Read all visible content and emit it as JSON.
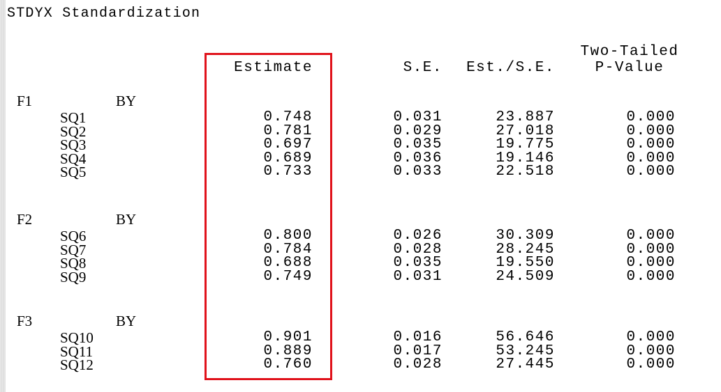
{
  "title": "STDYX Standardization",
  "headers": {
    "estimate": "Estimate",
    "se": "S.E.",
    "est_se": "Est./S.E.",
    "p_line1": "Two-Tailed",
    "p_line2": "P-Value"
  },
  "groups": [
    {
      "factor": "F1",
      "relation": "BY",
      "rows": [
        {
          "label": "SQ1",
          "estimate": "0.748",
          "se": "0.031",
          "est_se": "23.887",
          "p": "0.000"
        },
        {
          "label": "SQ2",
          "estimate": "0.781",
          "se": "0.029",
          "est_se": "27.018",
          "p": "0.000"
        },
        {
          "label": "SQ3",
          "estimate": "0.697",
          "se": "0.035",
          "est_se": "19.775",
          "p": "0.000"
        },
        {
          "label": "SQ4",
          "estimate": "0.689",
          "se": "0.036",
          "est_se": "19.146",
          "p": "0.000"
        },
        {
          "label": "SQ5",
          "estimate": "0.733",
          "se": "0.033",
          "est_se": "22.518",
          "p": "0.000"
        }
      ]
    },
    {
      "factor": "F2",
      "relation": "BY",
      "rows": [
        {
          "label": "SQ6",
          "estimate": "0.800",
          "se": "0.026",
          "est_se": "30.309",
          "p": "0.000"
        },
        {
          "label": "SQ7",
          "estimate": "0.784",
          "se": "0.028",
          "est_se": "28.245",
          "p": "0.000"
        },
        {
          "label": "SQ8",
          "estimate": "0.688",
          "se": "0.035",
          "est_se": "19.550",
          "p": "0.000"
        },
        {
          "label": "SQ9",
          "estimate": "0.749",
          "se": "0.031",
          "est_se": "24.509",
          "p": "0.000"
        }
      ]
    },
    {
      "factor": "F3",
      "relation": "BY",
      "rows": [
        {
          "label": "SQ10",
          "estimate": "0.901",
          "se": "0.016",
          "est_se": "56.646",
          "p": "0.000"
        },
        {
          "label": "SQ11",
          "estimate": "0.889",
          "se": "0.017",
          "est_se": "53.245",
          "p": "0.000"
        },
        {
          "label": "SQ12",
          "estimate": "0.760",
          "se": "0.028",
          "est_se": "27.445",
          "p": "0.000"
        }
      ]
    }
  ],
  "colors": {
    "highlight": "#e0121b",
    "text": "#000000",
    "background": "#ffffff"
  }
}
